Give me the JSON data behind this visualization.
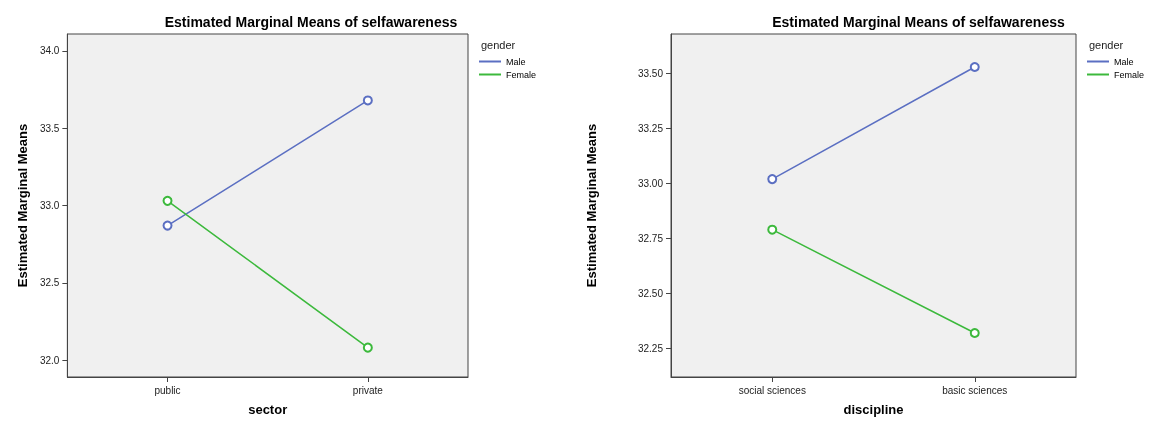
{
  "chart_data": [
    {
      "type": "line",
      "title": "Estimated Marginal Means of selfawareness",
      "xlabel": "sector",
      "ylabel": "Estimated Marginal Means",
      "legend_title": "gender",
      "categories": [
        "public",
        "private"
      ],
      "series": [
        {
          "name": "Male",
          "color": "#5b6fc2",
          "values": [
            32.87,
            33.68
          ]
        },
        {
          "name": "Female",
          "color": "#3cb93c",
          "values": [
            33.03,
            32.08
          ]
        }
      ],
      "ylim": [
        31.89,
        34.11
      ],
      "yticks": [
        {
          "value": 32,
          "label": "32.0"
        },
        {
          "value": 32.5,
          "label": "32.5"
        },
        {
          "value": 33,
          "label": "33.0"
        },
        {
          "value": 33.5,
          "label": "33.5"
        },
        {
          "value": 34,
          "label": "34.0"
        }
      ],
      "grid": false,
      "legend": "top right",
      "marker": "circle",
      "line_style": "solid"
    },
    {
      "type": "line",
      "title": "Estimated Marginal Means of selfawareness",
      "xlabel": "discipline",
      "ylabel": "Estimated Marginal Means",
      "legend_title": "gender",
      "categories": [
        "social sciences",
        "basic sciences"
      ],
      "series": [
        {
          "name": "Male",
          "color": "#5b6fc2",
          "values": [
            33.02,
            33.53
          ]
        },
        {
          "name": "Female",
          "color": "#3cb93c",
          "values": [
            32.79,
            32.32
          ]
        }
      ],
      "ylim": [
        32.12,
        33.68
      ],
      "yticks": [
        {
          "value": 32.25,
          "label": "32.25"
        },
        {
          "value": 32.5,
          "label": "32.50"
        },
        {
          "value": 32.75,
          "label": "32.75"
        },
        {
          "value": 33,
          "label": "33.00"
        },
        {
          "value": 33.25,
          "label": "33.25"
        },
        {
          "value": 33.5,
          "label": "33.50"
        }
      ],
      "grid": false,
      "legend": "top right",
      "marker": "circle",
      "line_style": "solid"
    }
  ]
}
